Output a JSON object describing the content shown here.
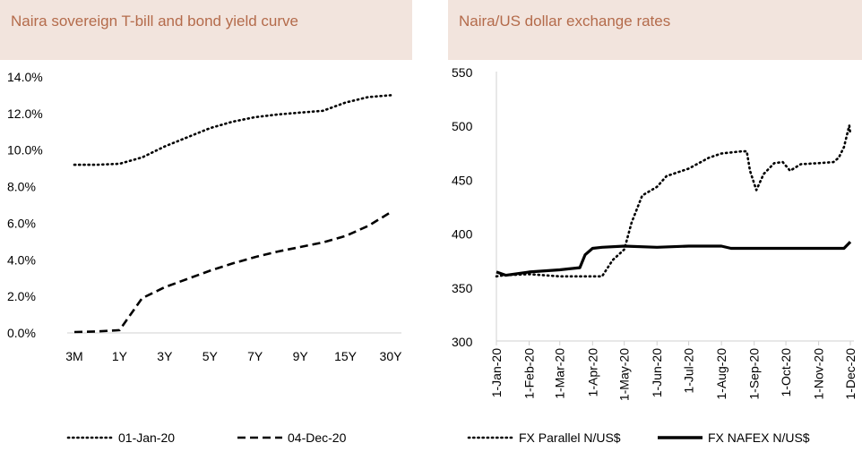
{
  "colors": {
    "header_bg": "#f2e4dd",
    "header_text": "#b46b4b",
    "line": "#000000"
  },
  "chart_data": [
    {
      "type": "line",
      "title": "Naira sovereign T-bill and bond yield curve",
      "categories": [
        "3M",
        "",
        "1Y",
        "",
        "3Y",
        "",
        "5Y",
        "",
        "7Y",
        "",
        "9Y",
        "",
        "15Y",
        "",
        "30Y"
      ],
      "x_ticks": [
        "3M",
        "1Y",
        "3Y",
        "5Y",
        "7Y",
        "9Y",
        "15Y",
        "30Y"
      ],
      "y_ticks": [
        "0.0%",
        "2.0%",
        "4.0%",
        "6.0%",
        "8.0%",
        "10.0%",
        "12.0%",
        "14.0%"
      ],
      "ylim": [
        0,
        14
      ],
      "grid": false,
      "legend": "bottom",
      "series": [
        {
          "name": "01-Jan-20",
          "style": "dotted",
          "values": [
            9.2,
            9.2,
            9.25,
            9.6,
            10.2,
            10.7,
            11.2,
            11.55,
            11.8,
            11.95,
            12.05,
            12.15,
            12.6,
            12.9,
            13.0
          ]
        },
        {
          "name": "04-Dec-20",
          "style": "dashed",
          "values": [
            0.05,
            0.08,
            0.15,
            1.9,
            2.5,
            2.95,
            3.4,
            3.8,
            4.15,
            4.45,
            4.7,
            4.95,
            5.3,
            5.85,
            6.6
          ]
        }
      ]
    },
    {
      "type": "line",
      "title": "Naira/US dollar exchange rates",
      "x_ticks": [
        "1-Jan-20",
        "1-Feb-20",
        "1-Mar-20",
        "1-Apr-20",
        "1-May-20",
        "1-Jun-20",
        "1-Jul-20",
        "1-Aug-20",
        "1-Sep-20",
        "1-Oct-20",
        "1-Nov-20",
        "1-Dec-20"
      ],
      "y_ticks": [
        "300",
        "350",
        "400",
        "450",
        "500",
        "550"
      ],
      "ylim": [
        300,
        550
      ],
      "grid": false,
      "legend": "bottom",
      "series": [
        {
          "name": "FX Parallel N/US$",
          "style": "dotted",
          "points": [
            [
              "1-Jan-20",
              360
            ],
            [
              "8-Jan-20",
              361
            ],
            [
              "1-Feb-20",
              362
            ],
            [
              "1-Mar-20",
              360
            ],
            [
              "1-Apr-20",
              360
            ],
            [
              "10-Apr-20",
              360
            ],
            [
              "20-Apr-20",
              375
            ],
            [
              "1-May-20",
              385
            ],
            [
              "8-May-20",
              410
            ],
            [
              "18-May-20",
              435
            ],
            [
              "1-Jun-20",
              443
            ],
            [
              "10-Jun-20",
              453
            ],
            [
              "1-Jul-20",
              460
            ],
            [
              "20-Jul-20",
              470
            ],
            [
              "1-Aug-20",
              474
            ],
            [
              "20-Aug-20",
              476
            ],
            [
              "25-Aug-20",
              476
            ],
            [
              "28-Aug-20",
              458
            ],
            [
              "3-Sep-20",
              440
            ],
            [
              "10-Sep-20",
              455
            ],
            [
              "20-Sep-20",
              465
            ],
            [
              "28-Sep-20",
              466
            ],
            [
              "5-Oct-20",
              458
            ],
            [
              "15-Oct-20",
              464
            ],
            [
              "1-Nov-20",
              465
            ],
            [
              "15-Nov-20",
              466
            ],
            [
              "20-Nov-20",
              470
            ],
            [
              "25-Nov-20",
              480
            ],
            [
              "30-Nov-20",
              500
            ],
            [
              "1-Dec-20",
              492
            ]
          ]
        },
        {
          "name": "FX NAFEX N/US$",
          "style": "solid",
          "points": [
            [
              "1-Jan-20",
              364
            ],
            [
              "10-Jan-20",
              361
            ],
            [
              "1-Feb-20",
              364
            ],
            [
              "1-Mar-20",
              366
            ],
            [
              "20-Mar-20",
              368
            ],
            [
              "25-Mar-20",
              380
            ],
            [
              "1-Apr-20",
              386
            ],
            [
              "10-Apr-20",
              387
            ],
            [
              "1-May-20",
              388
            ],
            [
              "1-Jun-20",
              387
            ],
            [
              "1-Jul-20",
              388
            ],
            [
              "1-Aug-20",
              388
            ],
            [
              "10-Aug-20",
              386
            ],
            [
              "1-Sep-20",
              386
            ],
            [
              "1-Oct-20",
              386
            ],
            [
              "1-Nov-20",
              386
            ],
            [
              "25-Nov-20",
              386
            ],
            [
              "1-Dec-20",
              392
            ]
          ]
        }
      ]
    }
  ]
}
